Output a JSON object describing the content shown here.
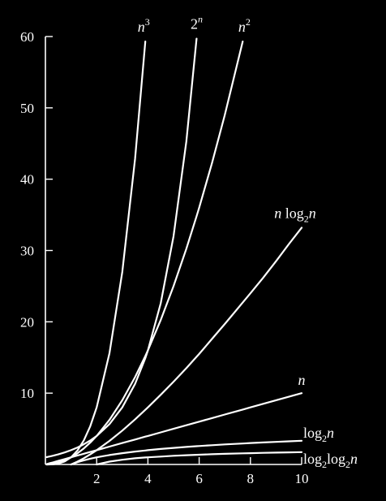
{
  "chart_data": {
    "type": "line",
    "title": "",
    "xlabel": "",
    "ylabel": "",
    "xlim": [
      0,
      10
    ],
    "ylim": [
      0,
      60
    ],
    "grid": false,
    "legend": "inline labels",
    "background": "#000000",
    "line_color": "#ffffff",
    "x_ticks": [
      2,
      4,
      6,
      8,
      10
    ],
    "y_ticks": [
      10,
      20,
      30,
      40,
      50,
      60
    ],
    "x": [
      0.05,
      0.1,
      0.2,
      0.3,
      0.5,
      0.75,
      1,
      1.25,
      1.5,
      1.75,
      2,
      2.5,
      3,
      3.5,
      3.9,
      4,
      4.5,
      5,
      5.5,
      5.9,
      6,
      6.5,
      7,
      7.7,
      8,
      8.5,
      9,
      9.5,
      10
    ],
    "series": [
      {
        "id": "n3",
        "label": {
          "base": "n",
          "sup": "3",
          "sub": ""
        },
        "values": [
          0.0001,
          0.001,
          0.008,
          0.027,
          0.125,
          0.42,
          1,
          1.95,
          3.38,
          5.36,
          8,
          15.6,
          27,
          42.9,
          59.3,
          null,
          null,
          null,
          null,
          null,
          null,
          null,
          null,
          null,
          null,
          null,
          null,
          null,
          null
        ]
      },
      {
        "id": "2n",
        "label": {
          "base": "2",
          "sup": "n",
          "sub": ""
        },
        "values": [
          1.03,
          1.07,
          1.15,
          1.23,
          1.41,
          1.68,
          2,
          2.38,
          2.83,
          3.36,
          4,
          5.66,
          8,
          11.3,
          14.9,
          16,
          22.6,
          32,
          45.3,
          59.7,
          null,
          null,
          null,
          null,
          null,
          null,
          null,
          null,
          null
        ]
      },
      {
        "id": "n2",
        "label": {
          "base": "n",
          "sup": "2",
          "sub": ""
        },
        "values": [
          0.0025,
          0.01,
          0.04,
          0.09,
          0.25,
          0.56,
          1,
          1.56,
          2.25,
          3.06,
          4,
          6.25,
          9,
          12.25,
          15.2,
          16,
          20.25,
          25,
          30.25,
          34.8,
          36,
          42.25,
          49,
          59.3,
          null,
          null,
          null,
          null,
          null
        ]
      },
      {
        "id": "nlogn",
        "label": {
          "base": "n log",
          "sup": "",
          "sub": "2",
          "tail": "n"
        },
        "values": [
          null,
          null,
          null,
          null,
          null,
          null,
          0,
          0.4,
          0.88,
          1.41,
          2,
          3.3,
          4.75,
          6.33,
          7.66,
          8,
          9.77,
          11.6,
          13.5,
          15.1,
          15.5,
          17.6,
          19.7,
          22.7,
          24,
          26.2,
          28.5,
          30.9,
          33.2
        ]
      },
      {
        "id": "n",
        "label": {
          "base": "n",
          "sup": "",
          "sub": ""
        },
        "values": [
          0.05,
          0.1,
          0.2,
          0.3,
          0.5,
          0.75,
          1,
          1.25,
          1.5,
          1.75,
          2,
          2.5,
          3,
          3.5,
          3.9,
          4,
          4.5,
          5,
          5.5,
          5.9,
          6,
          6.5,
          7,
          7.7,
          8,
          8.5,
          9,
          9.5,
          10
        ]
      },
      {
        "id": "logn",
        "label": {
          "base": "log",
          "sup": "",
          "sub": "2",
          "tail": "n"
        },
        "values": [
          null,
          null,
          null,
          null,
          null,
          null,
          0,
          0.32,
          0.58,
          0.81,
          1,
          1.32,
          1.58,
          1.81,
          1.96,
          2,
          2.17,
          2.32,
          2.46,
          2.56,
          2.58,
          2.7,
          2.81,
          2.94,
          3,
          3.09,
          3.17,
          3.25,
          3.32
        ]
      },
      {
        "id": "loglogn",
        "label": {
          "base": "log",
          "sup": "",
          "sub": "2",
          "tail": "log",
          "sub2": "2",
          "tail2": "n"
        },
        "values": [
          null,
          null,
          null,
          null,
          null,
          null,
          null,
          null,
          null,
          null,
          0,
          0.4,
          0.66,
          0.86,
          0.98,
          1,
          1.11,
          1.22,
          1.3,
          1.36,
          1.37,
          1.43,
          1.49,
          1.56,
          1.58,
          1.63,
          1.66,
          1.7,
          1.73
        ]
      }
    ]
  }
}
